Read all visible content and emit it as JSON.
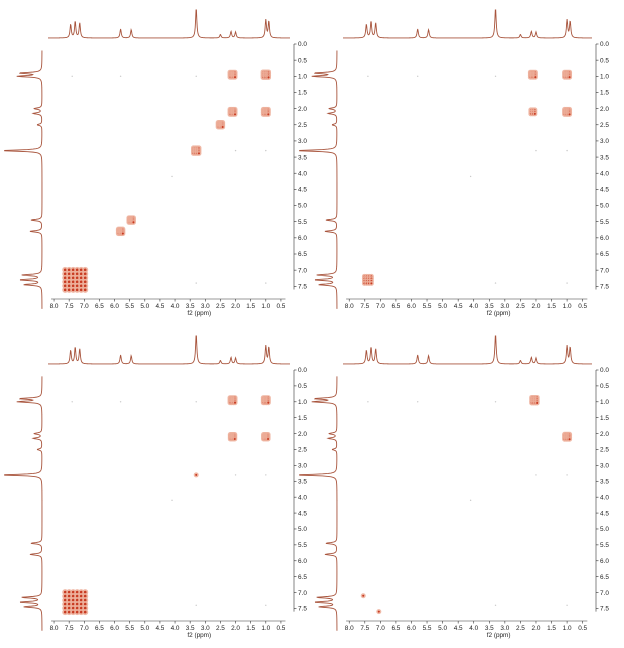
{
  "colors": {
    "spectrum_line": "#a8543c",
    "peak_outer": "#ecad98",
    "peak_inner": "#c83b22",
    "axis": "#333333",
    "background": "#ffffff"
  },
  "chart_data": [
    {
      "type": "heatmap",
      "subtype": "2D NMR COSY spectrum",
      "xlabel": "f2 (ppm)",
      "x_ticks": [
        "8.0",
        "7.5",
        "7.0",
        "6.5",
        "6.0",
        "5.5",
        "5.0",
        "4.5",
        "4.0",
        "3.5",
        "3.0",
        "2.5",
        "2.0",
        "1.5",
        "1.0",
        "0.5"
      ],
      "y_ticks": [
        "0.0",
        "0.5",
        "1.0",
        "1.5",
        "2.0",
        "2.5",
        "3.0",
        "3.5",
        "4.0",
        "4.5",
        "5.0",
        "5.5",
        "6.0",
        "6.5",
        "7.0",
        "7.5"
      ],
      "xlim": [
        8.2,
        0.2
      ],
      "ylim": [
        0.0,
        7.8
      ],
      "proton_spectrum_peaks": [
        {
          "ppm": 7.45,
          "height": 0.45
        },
        {
          "ppm": 7.3,
          "height": 0.55
        },
        {
          "ppm": 7.15,
          "height": 0.5
        },
        {
          "ppm": 5.8,
          "height": 0.3
        },
        {
          "ppm": 5.45,
          "height": 0.28
        },
        {
          "ppm": 3.3,
          "height": 1.0
        },
        {
          "ppm": 2.5,
          "height": 0.12
        },
        {
          "ppm": 2.15,
          "height": 0.22
        },
        {
          "ppm": 2.0,
          "height": 0.2
        },
        {
          "ppm": 1.0,
          "height": 0.6
        },
        {
          "ppm": 0.9,
          "height": 0.55
        }
      ],
      "cross_peaks": [
        {
          "x": 7.3,
          "y": 7.3,
          "size": 1.0
        },
        {
          "x": 5.8,
          "y": 5.8,
          "size": 0.45
        },
        {
          "x": 5.45,
          "y": 5.45,
          "size": 0.45
        },
        {
          "x": 3.3,
          "y": 3.3,
          "size": 0.55
        },
        {
          "x": 2.5,
          "y": 2.5,
          "size": 0.45
        },
        {
          "x": 2.1,
          "y": 2.1,
          "size": 0.5
        },
        {
          "x": 2.1,
          "y": 0.95,
          "size": 0.5
        },
        {
          "x": 1.0,
          "y": 0.95,
          "size": 0.55
        },
        {
          "x": 1.0,
          "y": 2.1,
          "size": 0.5
        }
      ]
    },
    {
      "type": "heatmap",
      "subtype": "2D NMR spectrum",
      "xlabel": "f2 (ppm)",
      "x_ticks": [
        "8.0",
        "7.5",
        "7.0",
        "6.5",
        "6.0",
        "5.5",
        "5.0",
        "4.5",
        "4.0",
        "3.5",
        "3.0",
        "2.5",
        "2.0",
        "1.5",
        "1.0",
        "0.5"
      ],
      "y_ticks": [
        "0.0",
        "0.5",
        "1.0",
        "1.5",
        "2.0",
        "2.5",
        "3.0",
        "3.5",
        "4.0",
        "4.5",
        "5.0",
        "5.5",
        "6.0",
        "6.5",
        "7.0",
        "7.5"
      ],
      "xlim": [
        8.2,
        0.2
      ],
      "ylim": [
        0.0,
        7.8
      ],
      "proton_spectrum_peaks": [
        {
          "ppm": 7.45,
          "height": 0.45
        },
        {
          "ppm": 7.3,
          "height": 0.55
        },
        {
          "ppm": 7.15,
          "height": 0.5
        },
        {
          "ppm": 5.8,
          "height": 0.3
        },
        {
          "ppm": 5.45,
          "height": 0.28
        },
        {
          "ppm": 3.3,
          "height": 1.0
        },
        {
          "ppm": 2.5,
          "height": 0.12
        },
        {
          "ppm": 2.15,
          "height": 0.22
        },
        {
          "ppm": 2.0,
          "height": 0.2
        },
        {
          "ppm": 1.0,
          "height": 0.6
        },
        {
          "ppm": 0.9,
          "height": 0.55
        }
      ],
      "cross_peaks": [
        {
          "x": 7.4,
          "y": 7.3,
          "size": 0.7
        },
        {
          "x": 2.1,
          "y": 0.95,
          "size": 0.5
        },
        {
          "x": 2.1,
          "y": 2.1,
          "size": 0.4
        },
        {
          "x": 1.0,
          "y": 0.95,
          "size": 0.5
        },
        {
          "x": 1.0,
          "y": 2.1,
          "size": 0.5
        }
      ]
    },
    {
      "type": "heatmap",
      "subtype": "2D NMR spectrum",
      "xlabel": "f2 (ppm)",
      "x_ticks": [
        "8.0",
        "7.5",
        "7.0",
        "6.5",
        "6.0",
        "5.5",
        "5.0",
        "4.5",
        "4.0",
        "3.5",
        "3.0",
        "2.5",
        "2.0",
        "1.5",
        "1.0",
        "0.5"
      ],
      "y_ticks": [
        "0.0",
        "0.5",
        "1.0",
        "1.5",
        "2.0",
        "2.5",
        "3.0",
        "3.5",
        "4.0",
        "4.5",
        "5.0",
        "5.5",
        "6.0",
        "6.5",
        "7.0",
        "7.5"
      ],
      "xlim": [
        8.2,
        0.2
      ],
      "ylim": [
        0.0,
        7.8
      ],
      "proton_spectrum_peaks": [
        {
          "ppm": 7.45,
          "height": 0.45
        },
        {
          "ppm": 7.3,
          "height": 0.55
        },
        {
          "ppm": 7.15,
          "height": 0.5
        },
        {
          "ppm": 5.8,
          "height": 0.3
        },
        {
          "ppm": 5.45,
          "height": 0.28
        },
        {
          "ppm": 3.3,
          "height": 1.0
        },
        {
          "ppm": 2.5,
          "height": 0.12
        },
        {
          "ppm": 2.15,
          "height": 0.22
        },
        {
          "ppm": 2.0,
          "height": 0.2
        },
        {
          "ppm": 1.0,
          "height": 0.6
        },
        {
          "ppm": 0.9,
          "height": 0.55
        }
      ],
      "cross_peaks": [
        {
          "x": 7.3,
          "y": 7.3,
          "size": 0.9
        },
        {
          "x": 3.3,
          "y": 3.3,
          "size": 0.3
        },
        {
          "x": 2.1,
          "y": 0.95,
          "size": 0.5
        },
        {
          "x": 2.1,
          "y": 2.1,
          "size": 0.45
        },
        {
          "x": 1.0,
          "y": 0.95,
          "size": 0.5
        },
        {
          "x": 1.0,
          "y": 2.1,
          "size": 0.45
        }
      ]
    },
    {
      "type": "heatmap",
      "subtype": "2D NMR spectrum",
      "xlabel": "f2 (ppm)",
      "x_ticks": [
        "8.0",
        "7.5",
        "7.0",
        "6.5",
        "6.0",
        "5.5",
        "5.0",
        "4.5",
        "4.0",
        "3.5",
        "3.0",
        "2.5",
        "2.0",
        "1.5",
        "1.0",
        "0.5"
      ],
      "y_ticks": [
        "0.0",
        "0.5",
        "1.0",
        "1.5",
        "2.0",
        "2.5",
        "3.0",
        "3.5",
        "4.0",
        "4.5",
        "5.0",
        "5.5",
        "6.0",
        "6.5",
        "7.0",
        "7.5"
      ],
      "xlim": [
        8.2,
        0.2
      ],
      "ylim": [
        0.0,
        7.8
      ],
      "proton_spectrum_peaks": [
        {
          "ppm": 7.45,
          "height": 0.45
        },
        {
          "ppm": 7.3,
          "height": 0.55
        },
        {
          "ppm": 7.15,
          "height": 0.5
        },
        {
          "ppm": 5.8,
          "height": 0.3
        },
        {
          "ppm": 5.45,
          "height": 0.28
        },
        {
          "ppm": 3.3,
          "height": 1.0
        },
        {
          "ppm": 2.5,
          "height": 0.12
        },
        {
          "ppm": 2.15,
          "height": 0.22
        },
        {
          "ppm": 2.0,
          "height": 0.2
        },
        {
          "ppm": 1.0,
          "height": 0.6
        },
        {
          "ppm": 0.9,
          "height": 0.55
        }
      ],
      "cross_peaks": [
        {
          "x": 2.05,
          "y": 0.95,
          "size": 0.55
        },
        {
          "x": 1.0,
          "y": 2.1,
          "size": 0.5
        },
        {
          "x": 7.55,
          "y": 7.1,
          "size": 0.15
        },
        {
          "x": 7.05,
          "y": 7.6,
          "size": 0.15
        }
      ]
    }
  ]
}
